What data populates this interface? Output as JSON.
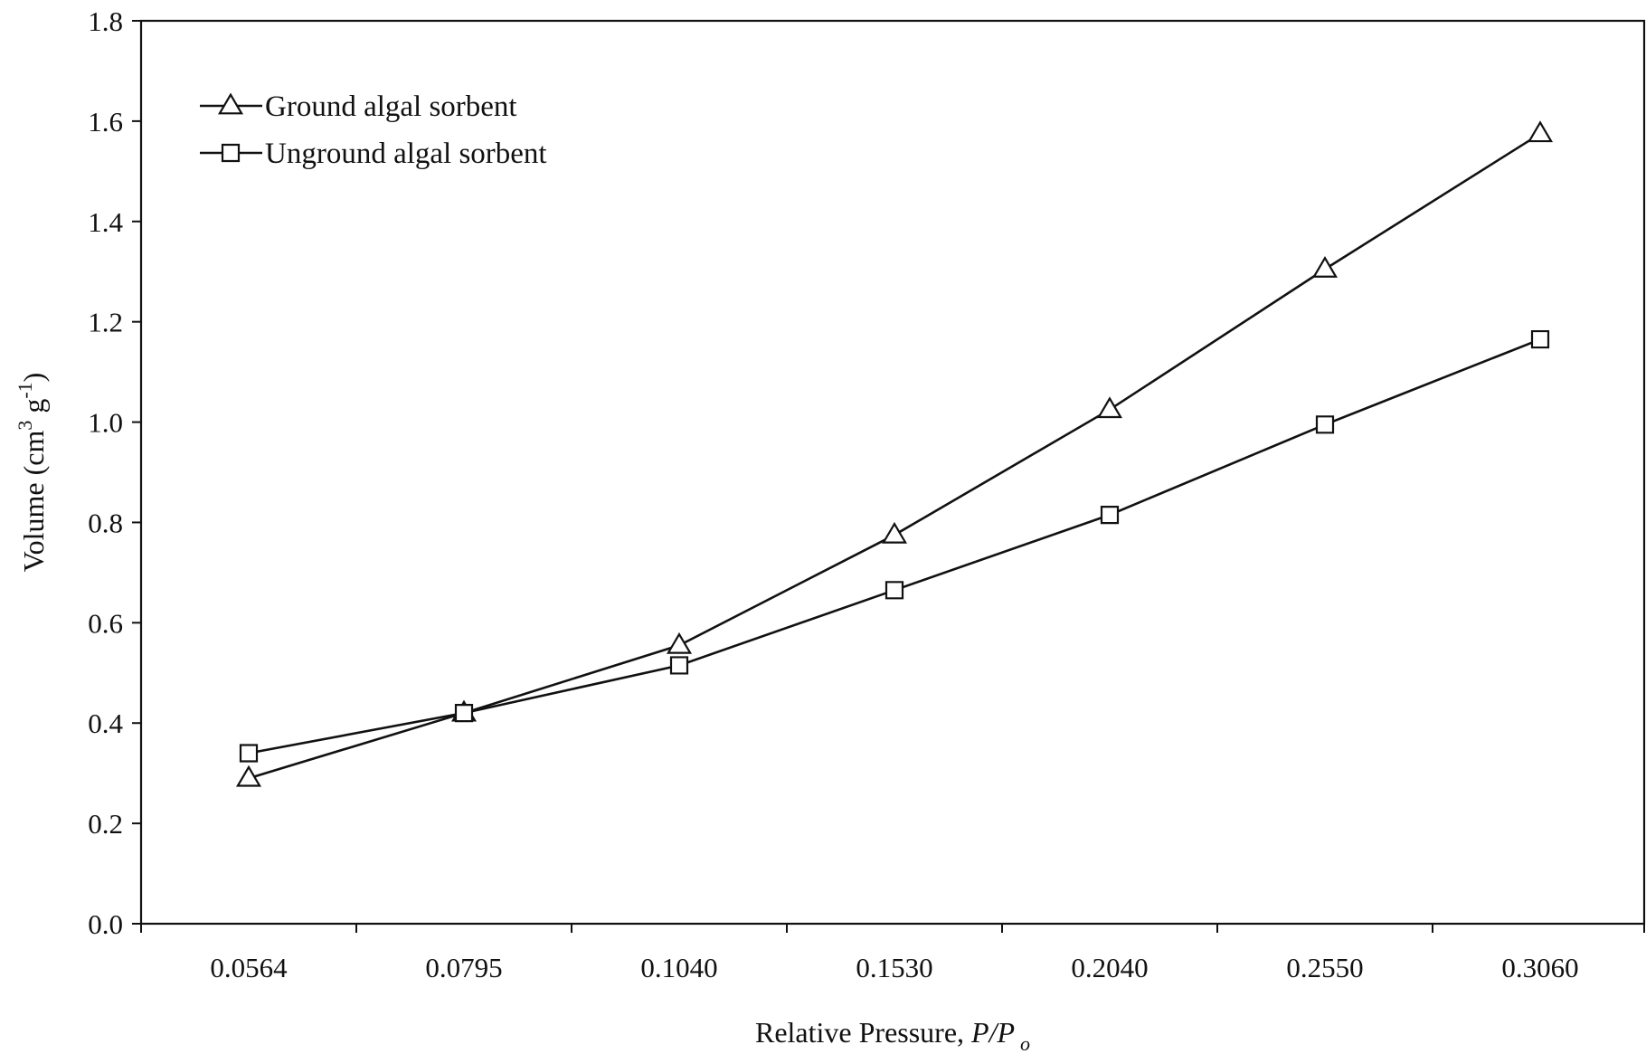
{
  "chart_data": {
    "type": "line",
    "title": "",
    "xlabel_main": "Relative Pressure, ",
    "xlabel_italic": "P/P",
    "xlabel_sub": "o",
    "ylabel_main": "Volume (cm",
    "ylabel_sup1": "3",
    "ylabel_mid": " g",
    "ylabel_sup2": "-1",
    "ylabel_end": ")",
    "categories": [
      "0.0564",
      "0.0795",
      "0.1040",
      "0.1530",
      "0.2040",
      "0.2550",
      "0.3060"
    ],
    "ylim": [
      0,
      1.8
    ],
    "yticks": [
      "0.0",
      "0.2",
      "0.4",
      "0.6",
      "0.8",
      "1.0",
      "1.2",
      "1.4",
      "1.6",
      "1.8"
    ],
    "grid": false,
    "legend_position": "top-left",
    "series": [
      {
        "name": "Ground algal sorbent",
        "marker": "triangle",
        "values": [
          0.29,
          0.42,
          0.555,
          0.775,
          1.025,
          1.305,
          1.575
        ]
      },
      {
        "name": "Unground algal sorbent",
        "marker": "square",
        "values": [
          0.34,
          0.42,
          0.515,
          0.665,
          0.815,
          0.995,
          1.165
        ]
      }
    ],
    "colors": {
      "line": "#111111",
      "background": "#ffffff"
    }
  }
}
